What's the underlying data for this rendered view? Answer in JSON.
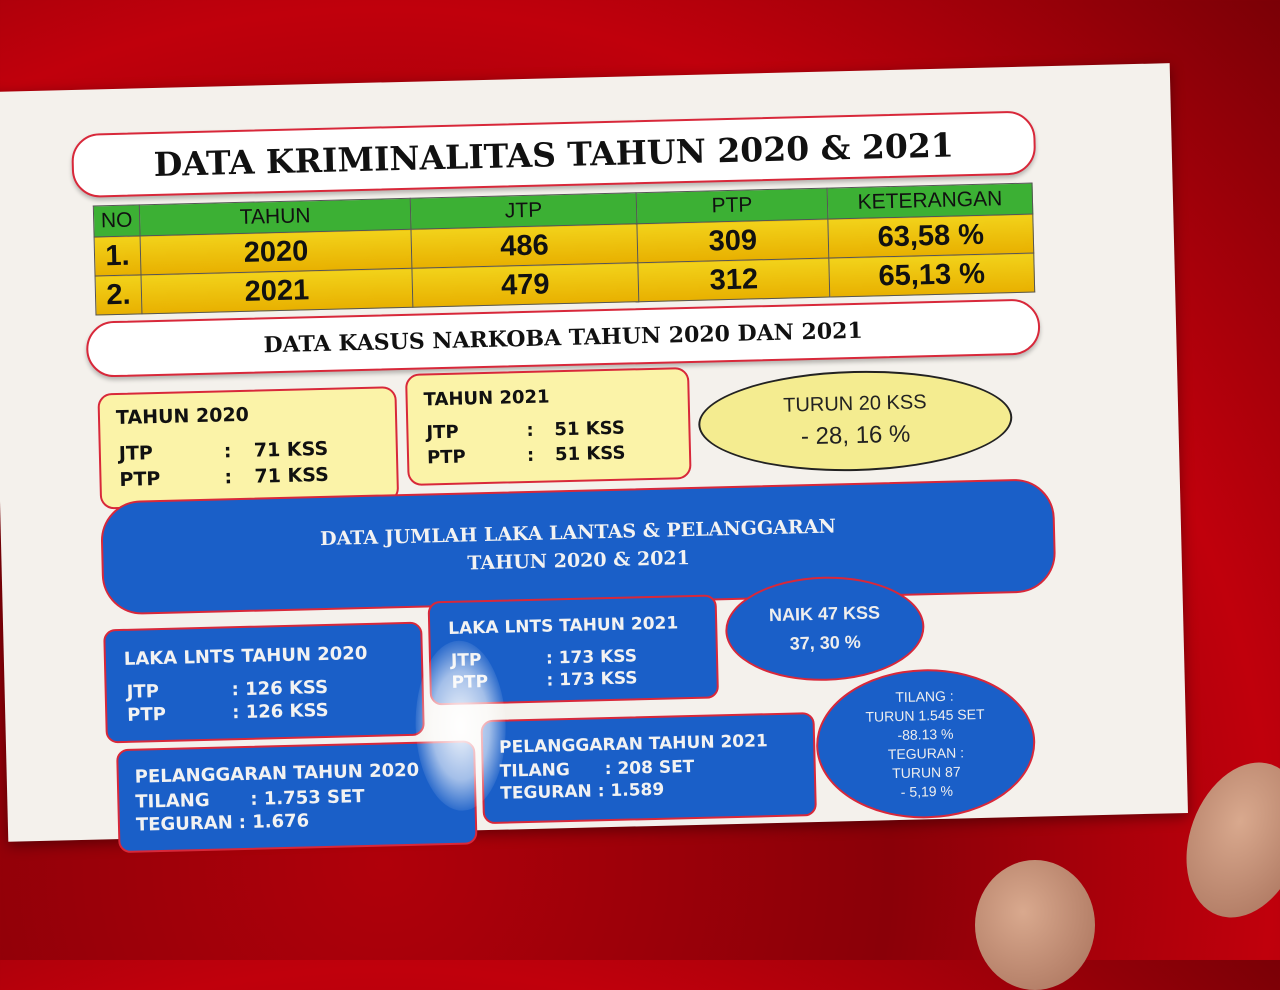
{
  "krim": {
    "title": "DATA KRIMINALITAS TAHUN 2020 & 2021",
    "headers": [
      "NO",
      "TAHUN",
      "JTP",
      "PTP",
      "KETERANGAN"
    ],
    "rows": [
      [
        "1.",
        "2020",
        "486",
        "309",
        "63,58 %"
      ],
      [
        "2.",
        "2021",
        "479",
        "312",
        "65,13 %"
      ]
    ]
  },
  "narkoba": {
    "title": "DATA KASUS NARKOBA  TAHUN 2020 DAN 2021",
    "y2020": {
      "title": "TAHUN 2020",
      "jtp_label": "JTP",
      "ptp_label": "PTP",
      "sep": ":",
      "jtp": "71 KSS",
      "ptp": "71 KSS"
    },
    "y2021": {
      "title": "TAHUN 2021",
      "jtp_label": "JTP",
      "ptp_label": "PTP",
      "sep": ":",
      "jtp": "51 KSS",
      "ptp": "51 KSS"
    },
    "summary": {
      "line1": "TURUN 20 KSS",
      "line2": "- 28, 16 %"
    }
  },
  "laka": {
    "title1": "DATA JUMLAH LAKA LANTAS & PELANGGARAN",
    "title2": "TAHUN 2020 & 2021",
    "l2020": {
      "title": "LAKA LNTS TAHUN 2020",
      "jtp_label": "JTP",
      "ptp_label": "PTP",
      "jtp": ": 126 KSS",
      "ptp": ": 126 KSS"
    },
    "l2021": {
      "title": "LAKA LNTS TAHUN 2021",
      "jtp_label": "JTP",
      "ptp_label": "PTP",
      "jtp": ": 173 KSS",
      "ptp": ": 173 KSS"
    },
    "laka_summary": {
      "line1": "NAIK 47 KSS",
      "line2": "37, 30 %"
    },
    "p2020": {
      "title": "PELANGGARAN TAHUN 2020",
      "tilang_label": "TILANG",
      "tilang": ": 1.753 SET",
      "teguran_label": "TEGURAN",
      "teguran": ": 1.676"
    },
    "p2021": {
      "title": "PELANGGARAN TAHUN 2021",
      "tilang_label": "TILANG",
      "tilang": ": 208 SET",
      "teguran_label": "TEGURAN",
      "teguran": ": 1.589"
    },
    "p_summary": {
      "l1": "TILANG :",
      "l2": "TURUN 1.545 SET",
      "l3": "-88.13 %",
      "l4": "TEGURAN :",
      "l5": "TURUN 87",
      "l6": "- 5,19 %"
    }
  },
  "colors": {
    "background": "#b0000a",
    "header_green": "#3cb034",
    "cell_yellow": "#f2d21a",
    "blue": "#1a5fc8",
    "border_red": "#d8283a"
  }
}
